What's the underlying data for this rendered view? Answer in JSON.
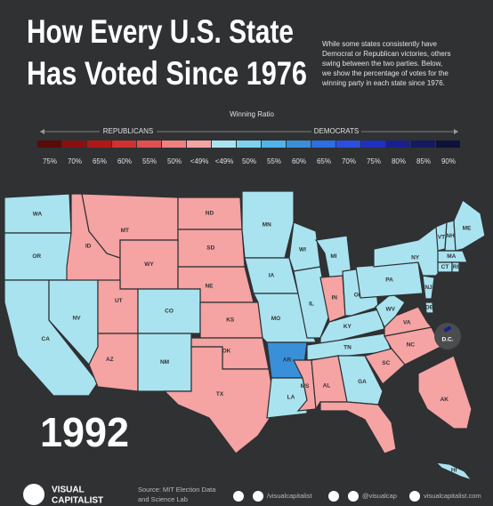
{
  "header": {
    "title_lines": [
      "How Every U.S. State",
      "Has Voted Since 1976"
    ],
    "description_lines": [
      "While some states consistently have",
      "Democrat or Republican victories, others",
      "swing between the two parties. Below,",
      "we show the percentage of votes for the",
      "winning party in each state since 1976."
    ]
  },
  "legend": {
    "title": "Winning Ratio",
    "left_label": "REPUBLICANS",
    "right_label": "DEMOCRATS",
    "items": [
      {
        "label": "75%",
        "color": "#5a0a0a"
      },
      {
        "label": "70%",
        "color": "#8a1010"
      },
      {
        "label": "65%",
        "color": "#b01818"
      },
      {
        "label": "60%",
        "color": "#d03030"
      },
      {
        "label": "55%",
        "color": "#e05050"
      },
      {
        "label": "50%",
        "color": "#ee8080"
      },
      {
        "label": "<49%",
        "color": "#f5a3a3"
      },
      {
        "label": "<49%",
        "color": "#a9e3f0"
      },
      {
        "label": "50%",
        "color": "#7fd0ef"
      },
      {
        "label": "55%",
        "color": "#4fb5e8"
      },
      {
        "label": "60%",
        "color": "#3a8fd9"
      },
      {
        "label": "65%",
        "color": "#2d6ee0"
      },
      {
        "label": "70%",
        "color": "#2a4fe0"
      },
      {
        "label": "75%",
        "color": "#2030c0"
      },
      {
        "label": "80%",
        "color": "#1a1f90"
      },
      {
        "label": "85%",
        "color": "#141a60"
      },
      {
        "label": "90%",
        "color": "#0f1238"
      }
    ]
  },
  "map": {
    "year": "1992",
    "states": [
      {
        "label": "WA",
        "color": "#a9e3f0"
      },
      {
        "label": "OR",
        "color": "#a9e3f0"
      },
      {
        "label": "ID",
        "color": "#f5a3a3"
      },
      {
        "label": "MT",
        "color": "#f5a3a3"
      },
      {
        "label": "ND",
        "color": "#f5a3a3"
      },
      {
        "label": "SD",
        "color": "#f5a3a3"
      },
      {
        "label": "WY",
        "color": "#f5a3a3"
      },
      {
        "label": "NE",
        "color": "#f5a3a3"
      },
      {
        "label": "CA",
        "color": "#a9e3f0"
      },
      {
        "label": "NV",
        "color": "#a9e3f0"
      },
      {
        "label": "UT",
        "color": "#f5a3a3"
      },
      {
        "label": "CO",
        "color": "#a9e3f0"
      },
      {
        "label": "AZ",
        "color": "#f5a3a3"
      },
      {
        "label": "NM",
        "color": "#a9e3f0"
      },
      {
        "label": "KS",
        "color": "#f5a3a3"
      },
      {
        "label": "OK",
        "color": "#f5a3a3"
      },
      {
        "label": "TX",
        "color": "#f5a3a3"
      },
      {
        "label": "MN",
        "color": "#a9e3f0"
      },
      {
        "label": "IA",
        "color": "#a9e3f0"
      },
      {
        "label": "MO",
        "color": "#a9e3f0"
      },
      {
        "label": "AR",
        "color": "#3a8fd9"
      },
      {
        "label": "LA",
        "color": "#a9e3f0"
      },
      {
        "label": "WI",
        "color": "#a9e3f0"
      },
      {
        "label": "IL",
        "color": "#a9e3f0"
      },
      {
        "label": "MI",
        "color": "#a9e3f0"
      },
      {
        "label": "IN",
        "color": "#f5a3a3"
      },
      {
        "label": "OH",
        "color": "#a9e3f0"
      },
      {
        "label": "KY",
        "color": "#a9e3f0"
      },
      {
        "label": "TN",
        "color": "#a9e3f0"
      },
      {
        "label": "MS",
        "color": "#f5a3a3"
      },
      {
        "label": "AL",
        "color": "#f5a3a3"
      },
      {
        "label": "GA",
        "color": "#a9e3f0"
      },
      {
        "label": "FL",
        "color": "#f5a3a3"
      },
      {
        "label": "SC",
        "color": "#f5a3a3"
      },
      {
        "label": "NC",
        "color": "#f5a3a3"
      },
      {
        "label": "VA",
        "color": "#f5a3a3"
      },
      {
        "label": "WV",
        "color": "#a9e3f0"
      },
      {
        "label": "PA",
        "color": "#a9e3f0"
      },
      {
        "label": "NY",
        "color": "#a9e3f0"
      },
      {
        "label": "NJ",
        "color": "#a9e3f0"
      },
      {
        "label": "DE",
        "color": "#a9e3f0"
      },
      {
        "label": "VT",
        "color": "#a9e3f0"
      },
      {
        "label": "NH",
        "color": "#a9e3f0"
      },
      {
        "label": "ME",
        "color": "#a9e3f0"
      },
      {
        "label": "MA",
        "color": "#a9e3f0"
      },
      {
        "label": "CT",
        "color": "#a9e3f0"
      },
      {
        "label": "RI",
        "color": "#a9e3f0"
      },
      {
        "label": "AK",
        "color": "#f5a3a3"
      },
      {
        "label": "HI",
        "color": "#a9e3f0"
      }
    ],
    "dc": {
      "label": "D.C.",
      "color": "#1a1f90"
    }
  },
  "footer": {
    "brand_lines": [
      "VISUAL",
      "CAPITALIST"
    ],
    "source_lines": [
      "Source: MIT Election Data",
      "and Science Lab"
    ],
    "social": [
      "/visualcapitalist",
      "@visualcap",
      "visualcapitalist.com"
    ]
  }
}
